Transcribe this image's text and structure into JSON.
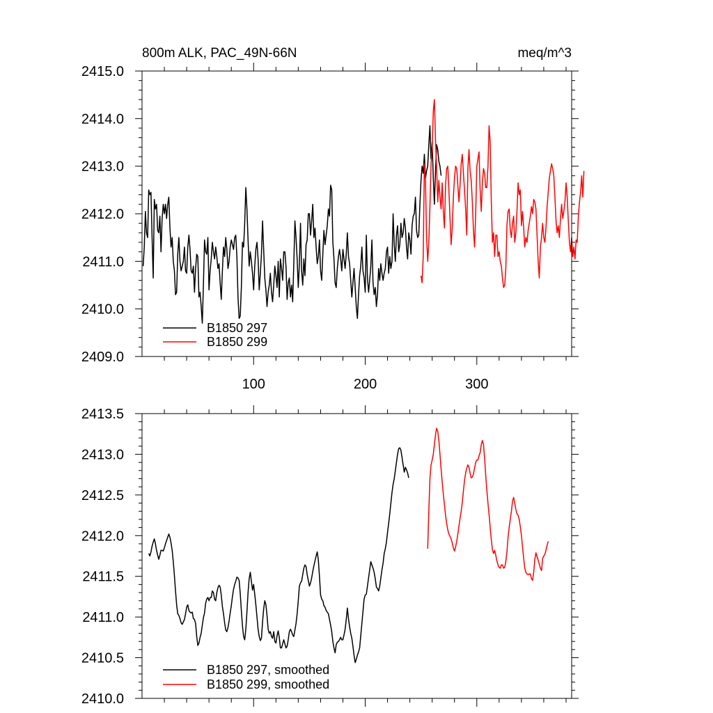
{
  "chart_data": [
    {
      "type": "line",
      "title_left": "800m ALK, PAC_49N-66N",
      "title_right": "meq/m^3",
      "xlim": [
        0,
        385
      ],
      "ylim": [
        2409.0,
        2415.0
      ],
      "x_ticks": [
        100,
        200,
        300
      ],
      "x_tick_labels": [
        "100",
        "200",
        "300"
      ],
      "y_ticks": [
        2409.0,
        2410.0,
        2411.0,
        2412.0,
        2413.0,
        2414.0,
        2415.0
      ],
      "y_tick_labels": [
        "2409.0",
        "2410.0",
        "2411.0",
        "2412.0",
        "2413.0",
        "2414.0",
        "2415.0"
      ],
      "grid": false,
      "legend_position": "bottom-left",
      "series": [
        {
          "name": "B1850 297",
          "color": "#000000",
          "x_start": 1,
          "values": [
            2410.9,
            2411.3,
            2412.05,
            2411.6,
            2411.5,
            2412.5,
            2412.4,
            2412.45,
            2411.5,
            2410.65,
            2412.3,
            2412.1,
            2412.2,
            2411.65,
            2411.6,
            2411.95,
            2411.2,
            2411.9,
            2412.2,
            2412.0,
            2412.2,
            2411.9,
            2412.2,
            2412.35,
            2411.7,
            2411.3,
            2411.5,
            2411.0,
            2410.8,
            2410.3,
            2410.35,
            2411.15,
            2411.5,
            2411.0,
            2410.8,
            2410.9,
            2411.0,
            2411.3,
            2410.8,
            2410.75,
            2411.3,
            2411.55,
            2411.25,
            2410.8,
            2410.75,
            2410.9,
            2410.35,
            2410.85,
            2411.15,
            2411.1,
            2410.25,
            2410.35,
            2410.05,
            2409.7,
            2410.5,
            2411.45,
            2411.2,
            2411.15,
            2411.5,
            2410.4,
            2410.8,
            2411.05,
            2411.4,
            2411.2,
            2411.05,
            2411.3,
            2411.1,
            2410.85,
            2410.95,
            2410.55,
            2410.2,
            2410.8,
            2411.3,
            2411.1,
            2411.5,
            2411.25,
            2410.85,
            2411.0,
            2411.3,
            2411.45,
            2411.35,
            2411.25,
            2411.5,
            2411.55,
            2411.1,
            2410.25,
            2409.8,
            2409.85,
            2410.45,
            2411.4,
            2411.3,
            2411.8,
            2412.55,
            2412.1,
            2411.45,
            2410.9,
            2411.2,
            2411.0,
            2410.75,
            2410.4,
            2410.9,
            2411.25,
            2411.4,
            2411.05,
            2410.4,
            2410.75,
            2411.15,
            2411.85,
            2411.25,
            2410.65,
            2410.4,
            2410.05,
            2410.35,
            2410.5,
            2410.75,
            2410.35,
            2410.15,
            2410.5,
            2410.9,
            2410.7,
            2410.45,
            2411.0,
            2410.25,
            2411.05,
            2410.85,
            2410.6,
            2411.2,
            2411.2,
            2410.9,
            2410.2,
            2410.55,
            2410.65,
            2410.25,
            2410.5,
            2410.15,
            2410.95,
            2411.85,
            2411.5,
            2411.05,
            2410.45,
            2410.95,
            2411.8,
            2410.8,
            2410.5,
            2411.05,
            2410.7,
            2411.35,
            2411.45,
            2412.0,
            2412.0,
            2411.55,
            2411.85,
            2412.2,
            2411.5,
            2411.7,
            2411.3,
            2410.95,
            2411.1,
            2411.45,
            2410.8,
            2410.6,
            2411.15,
            2411.65,
            2411.35,
            2411.55,
            2411.75,
            2412.1,
            2411.95,
            2412.6,
            2412.5,
            2411.4,
            2411.05,
            2410.55,
            2410.45,
            2410.85,
            2411.1,
            2411.25,
            2411.05,
            2410.8,
            2411.25,
            2411.05,
            2410.85,
            2411.15,
            2411.6,
            2411.1,
            2410.95,
            2410.6,
            2410.25,
            2410.55,
            2410.85,
            2410.45,
            2410.05,
            2409.8,
            2410.3,
            2410.7,
            2410.9,
            2411.3,
            2410.8,
            2410.65,
            2410.35,
            2411.55,
            2410.65,
            2410.35,
            2410.6,
            2410.9,
            2411.45,
            2410.55,
            2410.3,
            2410.45,
            2410.05,
            2410.3,
            2410.85,
            2410.6,
            2410.95,
            2410.75,
            2410.6,
            2410.75,
            2410.85,
            2411.2,
            2411.3,
            2410.75,
            2411.1,
            2410.85,
            2411.0,
            2412.0,
            2411.35,
            2411.0,
            2411.55,
            2411.75,
            2411.2,
            2411.35,
            2411.8,
            2411.5,
            2411.6,
            2411.9,
            2411.7,
            2411.3,
            2411.05,
            2411.6,
            2411.45,
            2411.15,
            2411.75,
            2411.95,
            2412.0,
            2412.35,
            2411.65,
            2411.5,
            2411.55,
            2412.2,
            2412.7,
            2413.0,
            2412.85,
            2413.25,
            2412.75,
            2412.9,
            2413.0,
            2413.45,
            2413.85,
            2413.15,
            2413.5,
            2412.75,
            2412.2,
            2412.9,
            2413.45,
            2413.35,
            2413.1,
            2413.0,
            2412.8
          ]
        },
        {
          "name": "B1850 299",
          "color": "#ff0000",
          "x_start": 250,
          "values": [
            2410.7,
            2410.55,
            2411.1,
            2413.05,
            2412.7,
            2411.5,
            2411.0,
            2411.4,
            2412.15,
            2413.05,
            2413.35,
            2414.15,
            2414.4,
            2413.55,
            2412.95,
            2412.25,
            2412.7,
            2412.35,
            2412.1,
            2412.65,
            2412.05,
            2411.7,
            2412.6,
            2412.95,
            2413.0,
            2412.5,
            2411.9,
            2411.35,
            2411.7,
            2412.35,
            2412.75,
            2413.0,
            2412.95,
            2412.6,
            2412.25,
            2412.6,
            2413.05,
            2413.25,
            2412.85,
            2412.5,
            2412.1,
            2411.55,
            2412.95,
            2413.35,
            2412.9,
            2412.7,
            2412.25,
            2411.65,
            2411.3,
            2412.0,
            2413.0,
            2413.15,
            2413.3,
            2412.5,
            2412.05,
            2412.65,
            2412.95,
            2412.85,
            2412.55,
            2412.55,
            2413.0,
            2413.85,
            2413.5,
            2412.25,
            2411.4,
            2411.6,
            2411.1,
            2411.55,
            2411.55,
            2411.1,
            2411.2,
            2411.0,
            2410.9,
            2410.65,
            2410.45,
            2410.5,
            2410.85,
            2411.75,
            2412.05,
            2412.1,
            2411.65,
            2411.5,
            2411.8,
            2411.95,
            2411.4,
            2411.6,
            2412.05,
            2412.65,
            2412.4,
            2412.5,
            2411.75,
            2412.05,
            2411.7,
            2411.3,
            2411.5,
            2411.4,
            2411.65,
            2411.8,
            2411.95,
            2412.15,
            2412.0,
            2412.3,
            2412.25,
            2412.1,
            2411.55,
            2411.0,
            2410.65,
            2411.3,
            2411.5,
            2411.8,
            2411.5,
            2411.4,
            2411.7,
            2412.15,
            2412.45,
            2412.75,
            2412.9,
            2413.05,
            2412.95,
            2412.8,
            2412.35,
            2411.85,
            2411.6,
            2411.75,
            2411.5,
            2411.9,
            2412.2,
            2411.9,
            2412.05,
            2412.25,
            2412.65,
            2412.35,
            2411.85,
            2411.4,
            2411.2,
            2411.5,
            2411.1,
            2411.3,
            2411.05,
            2411.45,
            2411.4,
            2411.95,
            2412.25,
            2412.45,
            2412.8,
            2412.35,
            2412.9
          ]
        }
      ]
    },
    {
      "type": "line",
      "xlim": [
        0,
        385
      ],
      "ylim": [
        2410.0,
        2413.5
      ],
      "x_ticks": [
        100,
        200,
        300
      ],
      "y_ticks": [
        2410.0,
        2410.5,
        2411.0,
        2411.5,
        2412.0,
        2412.5,
        2413.0,
        2413.5
      ],
      "y_tick_labels": [
        "2410.0",
        "2410.5",
        "2411.0",
        "2411.5",
        "2412.0",
        "2412.5",
        "2413.0",
        "2413.5"
      ],
      "grid": false,
      "legend_position": "bottom-left",
      "series": [
        {
          "name": "B1850 297, smoothed",
          "color": "#000000",
          "x_start": 6,
          "values": [
            2411.78,
            2411.75,
            2411.8,
            2411.87,
            2411.92,
            2411.96,
            2411.9,
            2411.82,
            2411.76,
            2411.71,
            2411.76,
            2411.82,
            2411.82,
            2411.81,
            2411.85,
            2411.9,
            2411.94,
            2411.98,
            2412.02,
            2411.98,
            2411.91,
            2411.82,
            2411.68,
            2411.51,
            2411.32,
            2411.15,
            2411.04,
            2411.02,
            2410.98,
            2410.93,
            2410.91,
            2410.94,
            2410.97,
            2411.04,
            2411.12,
            2411.15,
            2411.08,
            2411.06,
            2411.05,
            2411.06,
            2410.98,
            2410.97,
            2410.92,
            2410.76,
            2410.65,
            2410.68,
            2410.75,
            2410.8,
            2410.9,
            2410.99,
            2411.05,
            2411.17,
            2411.22,
            2411.24,
            2411.2,
            2411.24,
            2411.24,
            2411.32,
            2411.3,
            2411.22,
            2411.2,
            2411.3,
            2411.36,
            2411.39,
            2411.37,
            2411.27,
            2411.13,
            2411.04,
            2410.93,
            2410.84,
            2410.82,
            2410.87,
            2410.95,
            2411.05,
            2411.14,
            2411.25,
            2411.34,
            2411.4,
            2411.44,
            2411.49,
            2411.48,
            2411.45,
            2411.29,
            2411.08,
            2410.89,
            2410.76,
            2410.72,
            2410.85,
            2411.06,
            2411.3,
            2411.47,
            2411.55,
            2411.44,
            2411.33,
            2411.4,
            2411.28,
            2411.15,
            2411.0,
            2410.85,
            2410.76,
            2410.71,
            2410.74,
            2410.94,
            2411.1,
            2411.2,
            2411.15,
            2411.02,
            2410.85,
            2410.8,
            2410.82,
            2410.76,
            2410.74,
            2410.82,
            2410.7,
            2410.68,
            2410.77,
            2410.83,
            2410.75,
            2410.62,
            2410.62,
            2410.67,
            2410.72,
            2410.67,
            2410.62,
            2410.64,
            2410.72,
            2410.82,
            2410.85,
            2410.82,
            2410.78,
            2410.76,
            2410.84,
            2410.92,
            2411.04,
            2411.2,
            2411.38,
            2411.42,
            2411.44,
            2411.52,
            2411.6,
            2411.64,
            2411.62,
            2411.52,
            2411.45,
            2411.38,
            2411.42,
            2411.48,
            2411.56,
            2411.63,
            2411.69,
            2411.75,
            2411.8,
            2411.7,
            2411.5,
            2411.27,
            2411.22,
            2411.2,
            2411.14,
            2411.12,
            2411.08,
            2411.06,
            2411.04,
            2410.97,
            2410.9,
            2410.82,
            2410.7,
            2410.62,
            2410.56,
            2410.66,
            2410.69,
            2410.7,
            2410.72,
            2410.75,
            2410.72,
            2410.72,
            2410.78,
            2410.85,
            2410.97,
            2411.11,
            2410.98,
            2410.88,
            2410.8,
            2410.74,
            2410.64,
            2410.53,
            2410.44,
            2410.48,
            2410.53,
            2410.57,
            2410.62,
            2410.77,
            2410.92,
            2411.07,
            2411.22,
            2411.27,
            2411.28,
            2411.38,
            2411.48,
            2411.58,
            2411.68,
            2411.64,
            2411.6,
            2411.55,
            2411.47,
            2411.37,
            2411.35,
            2411.32,
            2411.38,
            2411.48,
            2411.58,
            2411.66,
            2411.78,
            2411.84,
            2411.92,
            2412.04,
            2412.15,
            2412.27,
            2412.4,
            2412.53,
            2412.63,
            2412.7,
            2412.8,
            2412.9,
            2413.0,
            2413.07,
            2413.08,
            2413.05,
            2412.96,
            2412.87,
            2412.78,
            2412.84,
            2412.81,
            2412.77,
            2412.71
          ]
        },
        {
          "name": "B1850 299, smoothed",
          "color": "#ff0000",
          "x_start": 256,
          "values": [
            2411.84,
            2412.3,
            2412.7,
            2412.87,
            2412.93,
            2413.0,
            2413.12,
            2413.24,
            2413.32,
            2413.28,
            2413.17,
            2413.0,
            2412.82,
            2412.66,
            2412.51,
            2412.38,
            2412.25,
            2412.15,
            2412.07,
            2412.02,
            2411.99,
            2411.96,
            2411.91,
            2411.85,
            2411.81,
            2411.86,
            2411.93,
            2412.02,
            2412.12,
            2412.21,
            2412.3,
            2412.41,
            2412.55,
            2412.68,
            2412.77,
            2412.83,
            2412.87,
            2412.84,
            2412.77,
            2412.71,
            2412.72,
            2412.76,
            2412.83,
            2412.9,
            2412.93,
            2412.93,
            2412.98,
            2413.02,
            2413.12,
            2413.17,
            2413.12,
            2412.95,
            2412.74,
            2412.56,
            2412.4,
            2412.26,
            2412.1,
            2411.95,
            2411.83,
            2411.78,
            2411.82,
            2411.76,
            2411.69,
            2411.64,
            2411.61,
            2411.6,
            2411.64,
            2411.64,
            2411.6,
            2411.61,
            2411.68,
            2411.8,
            2411.98,
            2412.1,
            2412.2,
            2412.3,
            2412.42,
            2412.47,
            2412.4,
            2412.32,
            2412.27,
            2412.25,
            2412.2,
            2412.11,
            2412.0,
            2411.86,
            2411.72,
            2411.6,
            2411.55,
            2411.53,
            2411.52,
            2411.53,
            2411.53,
            2411.47,
            2411.45,
            2411.55,
            2411.71,
            2411.79,
            2411.74,
            2411.7,
            2411.65,
            2411.6,
            2411.57,
            2411.72,
            2411.75,
            2411.77,
            2411.82,
            2411.88,
            2411.93
          ]
        }
      ]
    }
  ]
}
